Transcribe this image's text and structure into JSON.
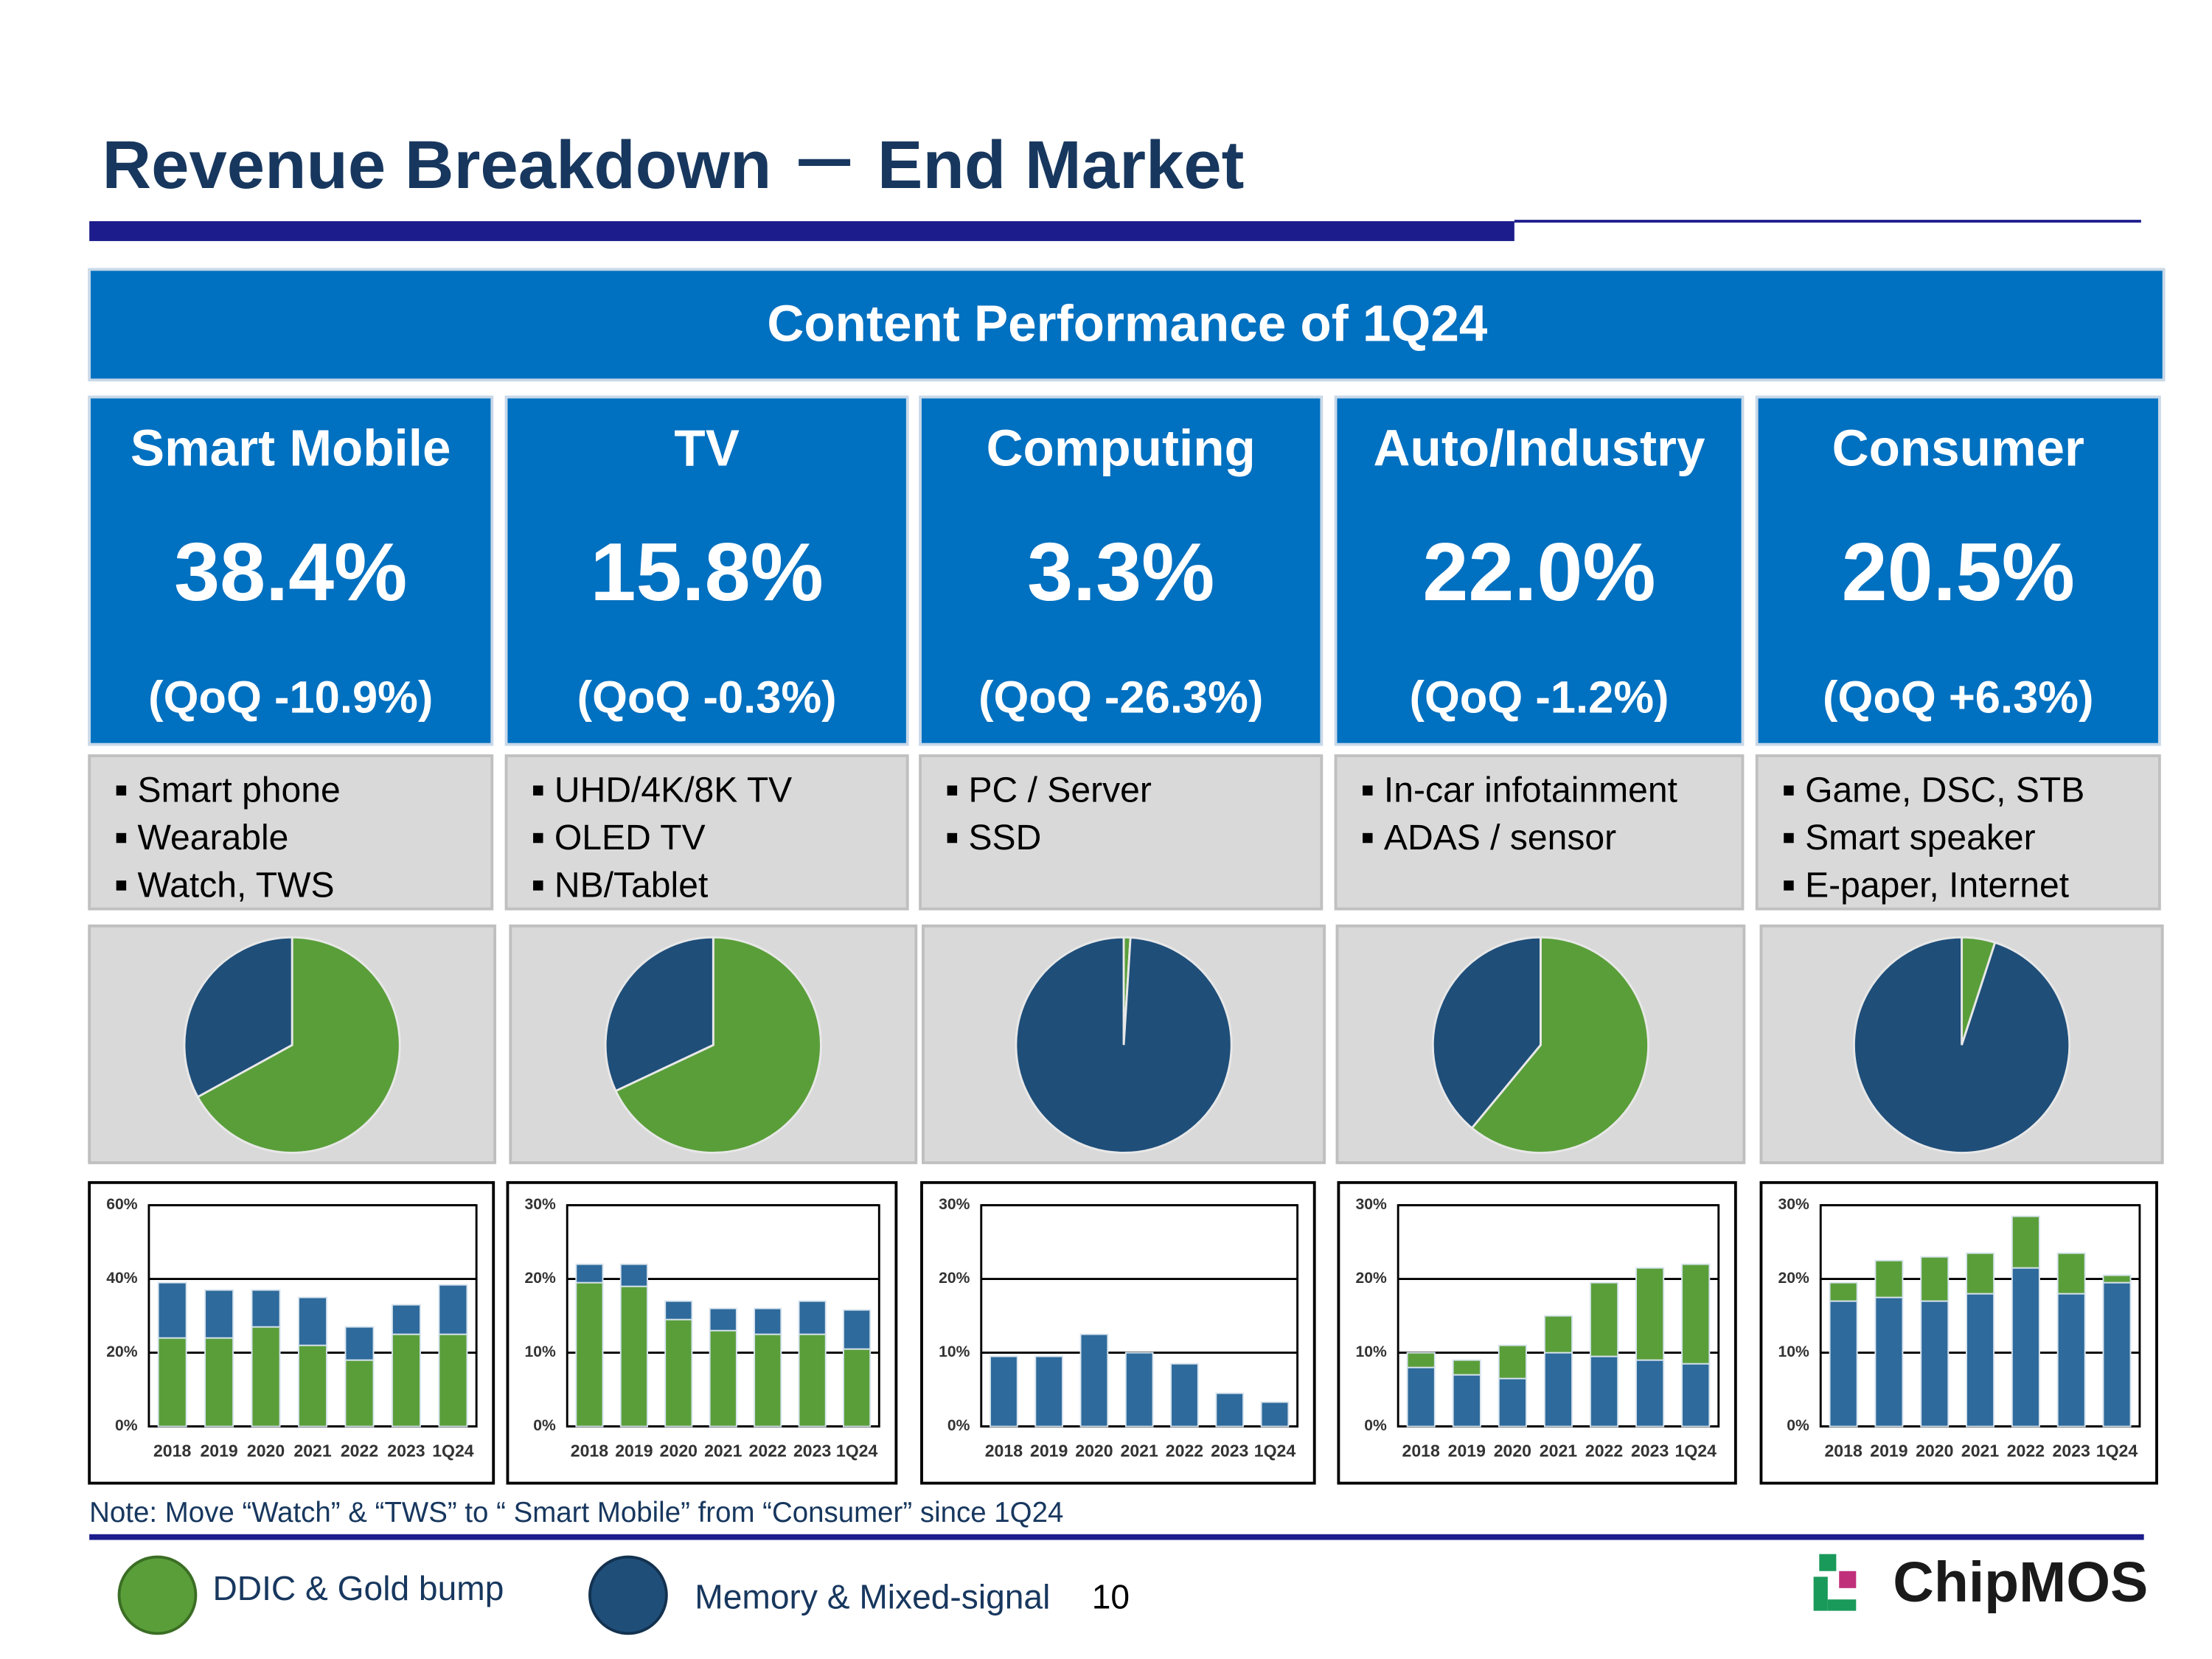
{
  "title": "Revenue Breakdown － End Market",
  "banner": "Content Performance of 1Q24",
  "segments": [
    {
      "name": "Smart Mobile",
      "share": "38.4%",
      "qoq": "(QoQ -10.9%)",
      "items": [
        "Smart phone",
        "Wearable",
        "Watch, TWS"
      ]
    },
    {
      "name": "TV",
      "share": "15.8%",
      "qoq": "(QoQ -0.3%)",
      "items": [
        "UHD/4K/8K TV",
        "OLED TV",
        "NB/Tablet"
      ]
    },
    {
      "name": "Computing",
      "share": "3.3%",
      "qoq": "(QoQ -26.3%)",
      "items": [
        "PC / Server",
        "SSD"
      ]
    },
    {
      "name": "Auto/Industry",
      "share": "22.0%",
      "qoq": "(QoQ -1.2%)",
      "items": [
        "In-car infotainment",
        "ADAS / sensor"
      ]
    },
    {
      "name": "Consumer",
      "share": "20.5%",
      "qoq": "(QoQ +6.3%)",
      "items": [
        "Game, DSC, STB",
        "Smart speaker",
        "E-paper, Internet"
      ]
    }
  ],
  "chart_data": [
    {
      "type": "pie",
      "values": [
        67,
        33
      ],
      "colors": [
        "#5a9e3a",
        "#1f4e79"
      ]
    },
    {
      "type": "pie",
      "values": [
        68,
        32
      ],
      "colors": [
        "#5a9e3a",
        "#1f4e79"
      ]
    },
    {
      "type": "pie",
      "values": [
        1,
        99
      ],
      "colors": [
        "#5a9e3a",
        "#1f4e79"
      ]
    },
    {
      "type": "pie",
      "values": [
        61,
        39
      ],
      "colors": [
        "#5a9e3a",
        "#1f4e79"
      ]
    },
    {
      "type": "pie",
      "values": [
        5,
        95
      ],
      "colors": [
        "#5a9e3a",
        "#1f4e79"
      ]
    },
    {
      "type": "bar",
      "categories": [
        "2018",
        "2019",
        "2020",
        "2021",
        "2022",
        "2023",
        "1Q24"
      ],
      "series": [
        {
          "color": "#5a9e3a",
          "values": [
            24,
            24,
            27,
            22,
            18,
            25,
            25
          ]
        },
        {
          "color": "#2e6a9b",
          "values": [
            15,
            13,
            10,
            13,
            9,
            8,
            13.4
          ]
        }
      ],
      "ylim": [
        0,
        60
      ],
      "yticks": [
        {
          "value": 0,
          "label": "0%"
        },
        {
          "value": 20,
          "label": "20%"
        },
        {
          "value": 40,
          "label": "40%"
        },
        {
          "value": 60,
          "label": "60%"
        }
      ],
      "grid": true
    },
    {
      "type": "bar",
      "categories": [
        "2018",
        "2019",
        "2020",
        "2021",
        "2022",
        "2023",
        "1Q24"
      ],
      "series": [
        {
          "color": "#5a9e3a",
          "values": [
            19.5,
            19,
            14.5,
            13,
            12.5,
            12.5,
            10.5
          ]
        },
        {
          "color": "#2e6a9b",
          "values": [
            2.5,
            3,
            2.5,
            3,
            3.5,
            4.5,
            5.3
          ]
        }
      ],
      "ylim": [
        0,
        30
      ],
      "yticks": [
        {
          "value": 0,
          "label": "0%"
        },
        {
          "value": 10,
          "label": "10%"
        },
        {
          "value": 20,
          "label": "20%"
        },
        {
          "value": 30,
          "label": "30%"
        }
      ],
      "grid": true
    },
    {
      "type": "bar",
      "categories": [
        "2018",
        "2019",
        "2020",
        "2021",
        "2022",
        "2023",
        "1Q24"
      ],
      "series": [
        {
          "color": "#2e6a9b",
          "values": [
            9.5,
            9.5,
            12.5,
            10,
            8.5,
            4.5,
            3.3
          ]
        }
      ],
      "ylim": [
        0,
        30
      ],
      "yticks": [
        {
          "value": 0,
          "label": "0%"
        },
        {
          "value": 10,
          "label": "10%"
        },
        {
          "value": 20,
          "label": "20%"
        },
        {
          "value": 30,
          "label": "30%"
        }
      ],
      "grid": true
    },
    {
      "type": "bar",
      "categories": [
        "2018",
        "2019",
        "2020",
        "2021",
        "2022",
        "2023",
        "1Q24"
      ],
      "series": [
        {
          "color": "#2e6a9b",
          "values": [
            8,
            7,
            6.5,
            10,
            9.5,
            9,
            8.5
          ]
        },
        {
          "color": "#5a9e3a",
          "values": [
            2,
            2,
            4.5,
            5,
            10,
            12.5,
            13.5
          ]
        }
      ],
      "ylim": [
        0,
        30
      ],
      "yticks": [
        {
          "value": 0,
          "label": "0%"
        },
        {
          "value": 10,
          "label": "10%"
        },
        {
          "value": 20,
          "label": "20%"
        },
        {
          "value": 30,
          "label": "30%"
        }
      ],
      "grid": true
    },
    {
      "type": "bar",
      "categories": [
        "2018",
        "2019",
        "2020",
        "2021",
        "2022",
        "2023",
        "1Q24"
      ],
      "series": [
        {
          "color": "#2e6a9b",
          "values": [
            17,
            17.5,
            17,
            18,
            21.5,
            18,
            19.5
          ]
        },
        {
          "color": "#5a9e3a",
          "values": [
            2.5,
            5,
            6,
            5.5,
            7,
            5.5,
            1
          ]
        }
      ],
      "ylim": [
        0,
        30
      ],
      "yticks": [
        {
          "value": 0,
          "label": "0%"
        },
        {
          "value": 10,
          "label": "10%"
        },
        {
          "value": 20,
          "label": "20%"
        },
        {
          "value": 30,
          "label": "30%"
        }
      ],
      "grid": true
    }
  ],
  "note": "Note: Move “Watch” & “TWS” to “ Smart Mobile” from “Consumer” since 1Q24",
  "legend": [
    {
      "label": "DDIC & Gold bump",
      "color": "#5a9e3a"
    },
    {
      "label": "Memory & Mixed-signal",
      "color": "#1f4e79"
    }
  ],
  "page_number": "10",
  "logo": "ChipMOS"
}
